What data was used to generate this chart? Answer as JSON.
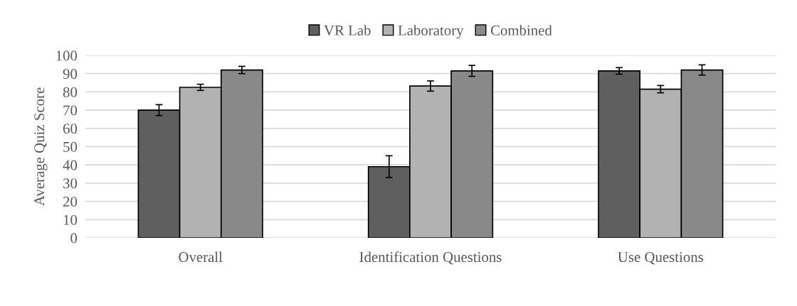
{
  "chart_data": {
    "type": "bar",
    "ylabel": "Average Quiz Score",
    "categories": [
      "Overall",
      "Identification Questions",
      "Use Questions"
    ],
    "series": [
      {
        "name": "VR Lab",
        "color": "#5f5f5f",
        "values": [
          70,
          39,
          91.5
        ],
        "errors": [
          3,
          6,
          1.8
        ]
      },
      {
        "name": "Laboratory",
        "color": "#b2b2b2",
        "values": [
          82.5,
          83.2,
          81.5
        ],
        "errors": [
          1.7,
          2.8,
          2
        ]
      },
      {
        "name": "Combined",
        "color": "#898989",
        "values": [
          92,
          91.5,
          92
        ],
        "errors": [
          2,
          3,
          2.8
        ]
      }
    ],
    "ylim": [
      0,
      100
    ],
    "yticks": [
      0,
      10,
      20,
      30,
      40,
      50,
      60,
      70,
      80,
      90,
      100
    ],
    "grid": "y",
    "legend": "top"
  }
}
